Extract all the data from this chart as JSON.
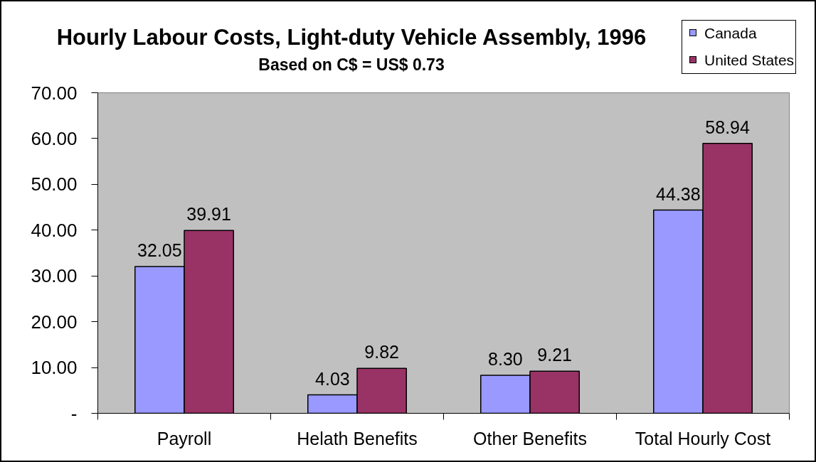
{
  "chart_data": {
    "type": "bar",
    "title": "Hourly Labour Costs, Light-duty Vehicle Assembly, 1996",
    "subtitle": "Based on C$ = US$ 0.73",
    "categories": [
      "Payroll",
      "Helath Benefits",
      "Other Benefits",
      "Total Hourly Cost"
    ],
    "series": [
      {
        "name": "Canada",
        "color": "#9999ff",
        "values": [
          32.05,
          4.03,
          8.3,
          44.38
        ],
        "value_labels": [
          "32.05",
          "4.03",
          "8.30",
          "44.38"
        ]
      },
      {
        "name": "United States",
        "color": "#993366",
        "values": [
          39.91,
          9.82,
          9.21,
          58.94
        ],
        "value_labels": [
          "39.91",
          "9.82",
          "9.21",
          "58.94"
        ]
      }
    ],
    "ylim": [
      0,
      70
    ],
    "yticks": [
      {
        "value": 0,
        "label": "-"
      },
      {
        "value": 10,
        "label": "10.00"
      },
      {
        "value": 20,
        "label": "20.00"
      },
      {
        "value": 30,
        "label": "30.00"
      },
      {
        "value": 40,
        "label": "40.00"
      },
      {
        "value": 50,
        "label": "50.00"
      },
      {
        "value": 60,
        "label": "60.00"
      },
      {
        "value": 70,
        "label": "70.00"
      }
    ],
    "legend": "top right"
  }
}
